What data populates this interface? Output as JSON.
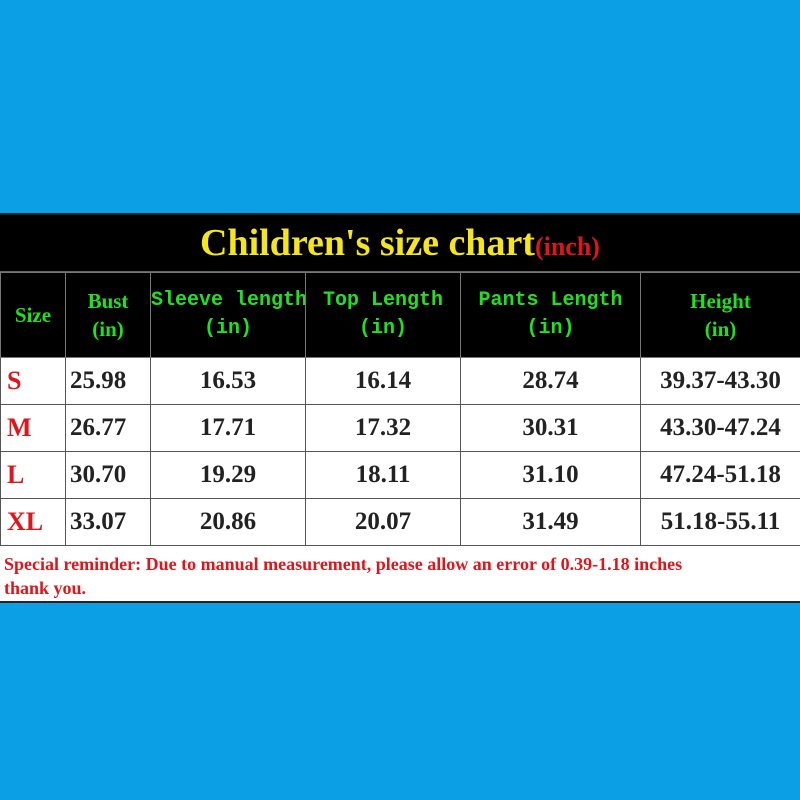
{
  "title": {
    "main": "Children's size chart",
    "unit": "(inch)"
  },
  "table": {
    "header": [
      {
        "name": "Size"
      },
      {
        "name": "Bust",
        "unit": "(in)"
      },
      {
        "name": "Sleeve length",
        "unit": "(in)"
      },
      {
        "name": "Top Length",
        "unit": "(in)"
      },
      {
        "name": "Pants Length",
        "unit": "(in)"
      },
      {
        "name": "Height",
        "unit": "(in)"
      }
    ],
    "rows": [
      [
        "S",
        "25.98",
        "16.53",
        "16.14",
        "28.74",
        "39.37-43.30"
      ],
      [
        "M",
        "26.77",
        "17.71",
        "17.32",
        "30.31",
        "43.30-47.24"
      ],
      [
        "L",
        "30.70",
        "19.29",
        "18.11",
        "31.10",
        "47.24-51.18"
      ],
      [
        "XL",
        "33.07",
        "20.86",
        "20.07",
        "31.49",
        "51.18-55.11"
      ]
    ]
  },
  "reminder": {
    "line1": "Special reminder: Due to manual measurement, please allow an error of 0.39-1.18 inches",
    "line2": "thank you."
  }
}
